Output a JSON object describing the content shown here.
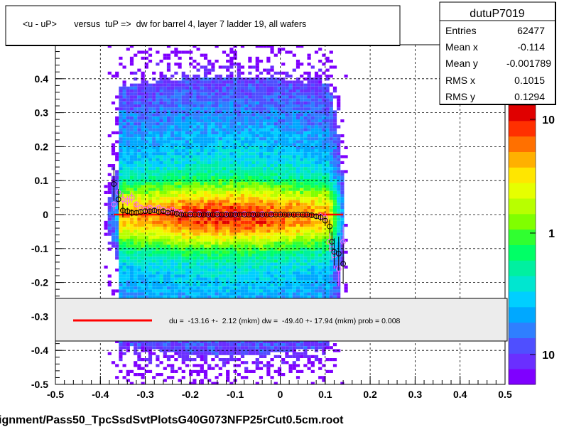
{
  "chart_data": {
    "type": "heatmap",
    "title": "<u - uP>       versus  tuP =>  dw for barrel 4, layer 7 ladder 19, all wafers",
    "footer": "ignment/Pass50_TpcSsdSvtPlotsG40G073NFP25rCut0.5cm.root",
    "xlim": [
      -0.5,
      0.5
    ],
    "ylim": [
      -0.5,
      0.5
    ],
    "x_ticks": [
      "-0.5",
      "-0.4",
      "-0.3",
      "-0.2",
      "-0.1",
      "0",
      "0.1",
      "0.2",
      "0.3",
      "0.4",
      "0.5"
    ],
    "x_tick_values": [
      -0.5,
      -0.4,
      -0.3,
      -0.2,
      -0.1,
      0,
      0.1,
      0.2,
      0.3,
      0.4,
      0.5
    ],
    "y_ticks": [
      "-0.5",
      "-0.4",
      "-0.3",
      "-0.2",
      "-0.1",
      "0",
      "0.1",
      "0.2",
      "0.3",
      "0.4"
    ],
    "y_tick_values": [
      -0.5,
      -0.4,
      -0.3,
      -0.2,
      -0.1,
      0,
      0.1,
      0.2,
      0.3,
      0.4
    ],
    "grid": true,
    "stats": {
      "name": "dutuP7019",
      "rows": [
        {
          "label": "Entries",
          "value": "62477"
        },
        {
          "label": "Mean x",
          "value": "-0.114"
        },
        {
          "label": "Mean y",
          "value": "-0.001789"
        },
        {
          "label": "RMS x",
          "value": "0.1015"
        },
        {
          "label": "RMS y",
          "value": "0.1294"
        }
      ]
    },
    "palette": {
      "ticks": [
        "10",
        "1",
        "10"
      ],
      "colors": [
        "#7f00ff",
        "#6a2fff",
        "#4f4fff",
        "#2f7fff",
        "#00a8ff",
        "#00cfff",
        "#00e6d0",
        "#00f0a0",
        "#00ff66",
        "#30ff30",
        "#80ff00",
        "#b8ff00",
        "#e6ff00",
        "#ffe600",
        "#ffb000",
        "#ff7000",
        "#ff3000",
        "#e00000"
      ]
    },
    "fit_legend": "du =  -13.16 +-  2.12 (mkm) dw =  -49.40 +- 17.94 (mkm) prob = 0.008",
    "fit_line": {
      "x": [
        -0.37,
        0.14
      ],
      "y": [
        0.0,
        0.0
      ],
      "color": "#ff0000"
    },
    "profile_black": [
      {
        "x": -0.37,
        "y": 0.09,
        "err": 0.05
      },
      {
        "x": -0.36,
        "y": 0.045,
        "err": 0.03
      },
      {
        "x": -0.35,
        "y": 0.012,
        "err": 0.02
      },
      {
        "x": -0.34,
        "y": 0.01,
        "err": 0.01
      },
      {
        "x": -0.33,
        "y": 0.005,
        "err": 0.01
      },
      {
        "x": -0.32,
        "y": 0.005,
        "err": 0.008
      },
      {
        "x": -0.31,
        "y": 0.008,
        "err": 0.008
      },
      {
        "x": -0.3,
        "y": 0.01,
        "err": 0.006
      },
      {
        "x": -0.29,
        "y": 0.01,
        "err": 0.006
      },
      {
        "x": -0.28,
        "y": 0.012,
        "err": 0.006
      },
      {
        "x": -0.27,
        "y": 0.008,
        "err": 0.006
      },
      {
        "x": -0.26,
        "y": 0.01,
        "err": 0.006
      },
      {
        "x": -0.25,
        "y": 0.005,
        "err": 0.005
      },
      {
        "x": -0.24,
        "y": 0.005,
        "err": 0.005
      },
      {
        "x": -0.23,
        "y": 0.002,
        "err": 0.005
      },
      {
        "x": -0.22,
        "y": 0.0,
        "err": 0.005
      },
      {
        "x": -0.21,
        "y": 0.0,
        "err": 0.005
      },
      {
        "x": -0.2,
        "y": 0.0,
        "err": 0.004
      },
      {
        "x": -0.19,
        "y": 0.0,
        "err": 0.004
      },
      {
        "x": -0.18,
        "y": 0.0,
        "err": 0.004
      },
      {
        "x": -0.17,
        "y": 0.0,
        "err": 0.004
      },
      {
        "x": -0.16,
        "y": 0.0,
        "err": 0.004
      },
      {
        "x": -0.15,
        "y": 0.0,
        "err": 0.004
      },
      {
        "x": -0.14,
        "y": 0.0,
        "err": 0.004
      },
      {
        "x": -0.13,
        "y": 0.0,
        "err": 0.004
      },
      {
        "x": -0.12,
        "y": 0.0,
        "err": 0.004
      },
      {
        "x": -0.11,
        "y": 0.0,
        "err": 0.004
      },
      {
        "x": -0.1,
        "y": 0.0,
        "err": 0.004
      },
      {
        "x": -0.09,
        "y": 0.0,
        "err": 0.004
      },
      {
        "x": -0.08,
        "y": 0.0,
        "err": 0.004
      },
      {
        "x": -0.07,
        "y": 0.0,
        "err": 0.004
      },
      {
        "x": -0.06,
        "y": 0.0,
        "err": 0.004
      },
      {
        "x": -0.05,
        "y": 0.0,
        "err": 0.004
      },
      {
        "x": -0.04,
        "y": 0.0,
        "err": 0.004
      },
      {
        "x": -0.03,
        "y": 0.0,
        "err": 0.004
      },
      {
        "x": -0.02,
        "y": 0.0,
        "err": 0.004
      },
      {
        "x": -0.01,
        "y": 0.0,
        "err": 0.004
      },
      {
        "x": 0.0,
        "y": 0.0,
        "err": 0.004
      },
      {
        "x": 0.01,
        "y": 0.0,
        "err": 0.004
      },
      {
        "x": 0.02,
        "y": 0.0,
        "err": 0.004
      },
      {
        "x": 0.03,
        "y": 0.0,
        "err": 0.004
      },
      {
        "x": 0.04,
        "y": 0.0,
        "err": 0.004
      },
      {
        "x": 0.05,
        "y": 0.0,
        "err": 0.005
      },
      {
        "x": 0.06,
        "y": 0.0,
        "err": 0.005
      },
      {
        "x": 0.07,
        "y": -0.002,
        "err": 0.006
      },
      {
        "x": 0.08,
        "y": -0.005,
        "err": 0.008
      },
      {
        "x": 0.09,
        "y": -0.008,
        "err": 0.01
      },
      {
        "x": 0.1,
        "y": -0.018,
        "err": 0.015
      },
      {
        "x": 0.11,
        "y": -0.035,
        "err": 0.02
      },
      {
        "x": 0.115,
        "y": -0.08,
        "err": 0.03
      },
      {
        "x": 0.12,
        "y": -0.11,
        "err": 0.04
      },
      {
        "x": 0.13,
        "y": -0.115,
        "err": 0.05
      },
      {
        "x": 0.14,
        "y": -0.145,
        "err": 0.06
      }
    ],
    "profile_pink": [
      {
        "x": -0.37,
        "y": 0.03,
        "err": 0.02
      },
      {
        "x": -0.36,
        "y": 0.065,
        "err": 0.03
      },
      {
        "x": -0.35,
        "y": 0.045,
        "err": 0.02
      },
      {
        "x": -0.34,
        "y": 0.04,
        "err": 0.015
      },
      {
        "x": -0.33,
        "y": 0.05,
        "err": 0.015
      },
      {
        "x": -0.32,
        "y": 0.03,
        "err": 0.01
      },
      {
        "x": -0.31,
        "y": 0.02,
        "err": 0.01
      },
      {
        "x": -0.3,
        "y": 0.015,
        "err": 0.008
      },
      {
        "x": -0.29,
        "y": 0.02,
        "err": 0.008
      },
      {
        "x": -0.28,
        "y": 0.015,
        "err": 0.008
      },
      {
        "x": -0.27,
        "y": 0.02,
        "err": 0.008
      },
      {
        "x": -0.26,
        "y": 0.015,
        "err": 0.007
      },
      {
        "x": -0.25,
        "y": 0.01,
        "err": 0.007
      },
      {
        "x": -0.24,
        "y": 0.015,
        "err": 0.007
      },
      {
        "x": -0.23,
        "y": 0.008,
        "err": 0.006
      },
      {
        "x": -0.22,
        "y": 0.005,
        "err": 0.006
      },
      {
        "x": -0.2,
        "y": 0.003,
        "err": 0.005
      },
      {
        "x": -0.18,
        "y": 0.002,
        "err": 0.005
      },
      {
        "x": -0.16,
        "y": 0.002,
        "err": 0.005
      },
      {
        "x": -0.14,
        "y": 0.002,
        "err": 0.005
      },
      {
        "x": -0.12,
        "y": 0.002,
        "err": 0.005
      },
      {
        "x": -0.1,
        "y": 0.002,
        "err": 0.005
      },
      {
        "x": -0.08,
        "y": 0.002,
        "err": 0.005
      },
      {
        "x": -0.06,
        "y": 0.002,
        "err": 0.005
      },
      {
        "x": -0.04,
        "y": 0.002,
        "err": 0.005
      },
      {
        "x": -0.02,
        "y": 0.002,
        "err": 0.005
      },
      {
        "x": 0.0,
        "y": 0.0,
        "err": 0.005
      },
      {
        "x": 0.02,
        "y": 0.0,
        "err": 0.005
      },
      {
        "x": 0.04,
        "y": 0.0,
        "err": 0.005
      },
      {
        "x": 0.06,
        "y": 0.0,
        "err": 0.006
      },
      {
        "x": 0.08,
        "y": -0.005,
        "err": 0.008
      },
      {
        "x": 0.09,
        "y": -0.005,
        "err": 0.01
      },
      {
        "x": 0.1,
        "y": -0.01,
        "err": 0.015
      },
      {
        "x": 0.11,
        "y": -0.08,
        "err": 0.03
      },
      {
        "x": 0.115,
        "y": -0.1,
        "err": 0.035
      },
      {
        "x": 0.12,
        "y": -0.12,
        "err": 0.04
      },
      {
        "x": 0.13,
        "y": -0.16,
        "err": 0.05
      },
      {
        "x": 0.14,
        "y": -0.08,
        "err": 0.05
      }
    ]
  }
}
